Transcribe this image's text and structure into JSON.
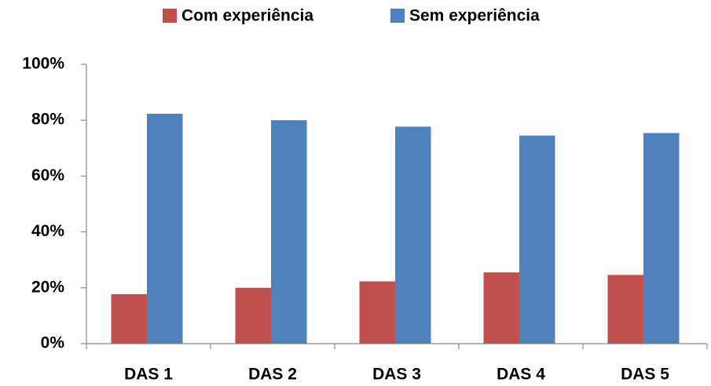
{
  "chart_data": {
    "type": "bar",
    "categories": [
      "DAS 1",
      "DAS 2",
      "DAS 3",
      "DAS 4",
      "DAS 5"
    ],
    "series": [
      {
        "name": "Com experiência",
        "color": "#c0504d",
        "values": [
          17.7,
          20,
          22.3,
          25.5,
          24.6
        ]
      },
      {
        "name": "Sem experiência",
        "color": "#4f81bd",
        "values": [
          82.3,
          80,
          77.7,
          74.5,
          75.4
        ]
      }
    ],
    "ylim": [
      0,
      100
    ],
    "yticks": [
      {
        "value": 0,
        "label": "0%"
      },
      {
        "value": 20,
        "label": "20%"
      },
      {
        "value": 40,
        "label": "40%"
      },
      {
        "value": 60,
        "label": "60%"
      },
      {
        "value": 80,
        "label": "80%"
      },
      {
        "value": 100,
        "label": "100%"
      }
    ],
    "grid": false,
    "legend": "top"
  }
}
